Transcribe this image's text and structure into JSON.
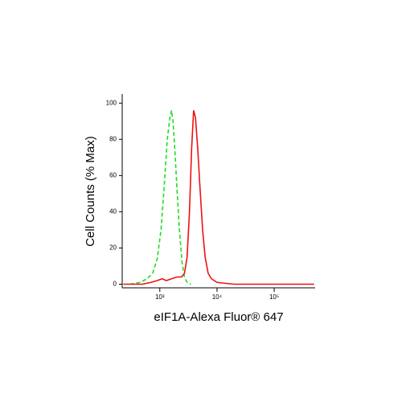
{
  "chart_data": {
    "type": "line",
    "xlabel": "eIF1A-Alexa Fluor® 647",
    "ylabel": "Cell Counts (% Max)",
    "xscale": "log",
    "xlim": [
      220,
      520000
    ],
    "xticks": [
      {
        "value": 1000,
        "label": "10³"
      },
      {
        "value": 10000,
        "label": "10⁴"
      },
      {
        "value": 100000,
        "label": "10⁵"
      }
    ],
    "ylim": [
      -2,
      105
    ],
    "yticks": [
      0,
      20,
      40,
      60,
      80,
      100
    ],
    "series": [
      {
        "color": "#22dd22",
        "dash": true,
        "x": [
          300,
          450,
          600,
          750,
          900,
          1050,
          1200,
          1350,
          1500,
          1600,
          1700,
          1850,
          2000,
          2200,
          2450,
          2700,
          3000,
          3500
        ],
        "values": [
          0,
          1,
          3,
          6,
          14,
          30,
          55,
          80,
          92,
          96,
          90,
          72,
          52,
          30,
          12,
          4,
          1,
          0
        ]
      },
      {
        "color": "#ee1111",
        "dash": false,
        "x": [
          230,
          500,
          700,
          900,
          1100,
          1300,
          1600,
          2000,
          2400,
          2700,
          3000,
          3300,
          3600,
          3900,
          4200,
          4600,
          5000,
          5600,
          6200,
          7000,
          8000,
          10000,
          14000,
          20000,
          100000,
          500000
        ],
        "values": [
          0,
          0,
          1,
          2,
          3,
          2,
          3,
          4,
          4,
          6,
          15,
          40,
          75,
          96,
          92,
          75,
          55,
          30,
          15,
          6,
          3,
          1,
          0.5,
          0,
          0,
          0
        ]
      }
    ]
  }
}
